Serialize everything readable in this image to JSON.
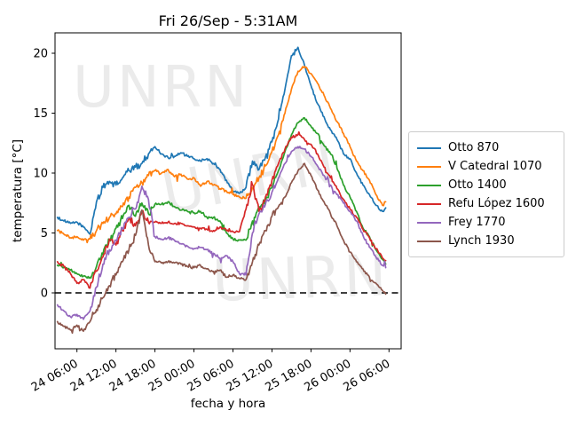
{
  "title": "Fri 26/Sep - 5:31AM",
  "axes": {
    "xlabel": "fecha y hora",
    "ylabel": "temperatura [°C]"
  },
  "watermark": {
    "text": "UNRN",
    "color": "#ebebeb"
  },
  "chart_data": {
    "type": "line",
    "title": "Fri 26/Sep - 5:31AM",
    "xlabel": "fecha y hora",
    "ylabel": "temperatura [°C]",
    "x_tick_labels": [
      "24 06:00",
      "24 12:00",
      "24 18:00",
      "25 00:00",
      "25 06:00",
      "25 12:00",
      "25 18:00",
      "26 00:00",
      "26 06:00"
    ],
    "x_tick_hours": [
      0,
      6,
      12,
      18,
      24,
      30,
      36,
      42,
      48
    ],
    "y_ticks": [
      0,
      5,
      10,
      15,
      20
    ],
    "ylim": [
      -4.7,
      21.7
    ],
    "xlim_hours": [
      -3.4,
      49.9
    ],
    "zero_line": true,
    "legend_position": "right",
    "x_hours": [
      -3,
      -2,
      -1,
      0,
      1,
      2,
      3,
      4,
      5,
      6,
      7,
      8,
      9,
      10,
      11,
      12,
      13,
      14,
      15,
      16,
      17,
      18,
      19,
      20,
      21,
      22,
      23,
      24,
      25,
      26,
      27,
      28,
      29,
      30,
      31,
      32,
      33,
      34,
      35,
      36,
      37,
      38,
      39,
      40,
      41,
      42,
      43,
      44,
      45,
      46,
      47,
      47.5
    ],
    "series": [
      {
        "name": "Otto 870",
        "color": "#1f77b4",
        "values": [
          6.3,
          6.0,
          5.8,
          5.9,
          5.5,
          4.9,
          7.6,
          8.8,
          9.3,
          9.0,
          9.6,
          10.2,
          10.5,
          10.8,
          11.6,
          12.2,
          11.6,
          11.3,
          11.4,
          11.7,
          11.4,
          11.2,
          11.0,
          11.2,
          10.8,
          10.3,
          9.4,
          8.5,
          8.3,
          8.8,
          11.0,
          10.3,
          11.3,
          12.6,
          14.5,
          17.0,
          19.8,
          20.5,
          19.0,
          17.3,
          15.8,
          14.7,
          13.6,
          12.8,
          11.6,
          11.2,
          10.0,
          9.0,
          8.2,
          7.3,
          6.8,
          7.1
        ]
      },
      {
        "name": "V Catedral 1070",
        "color": "#ff7f0e",
        "values": [
          5.2,
          4.9,
          4.6,
          4.7,
          4.4,
          4.5,
          5.2,
          5.8,
          6.3,
          6.6,
          7.2,
          8.0,
          8.8,
          9.2,
          9.8,
          10.2,
          10.0,
          10.3,
          9.7,
          9.9,
          9.5,
          9.6,
          8.9,
          9.3,
          9.0,
          8.7,
          8.5,
          8.2,
          8.0,
          7.9,
          8.8,
          9.6,
          10.6,
          11.8,
          13.2,
          15.0,
          17.0,
          18.5,
          18.9,
          18.3,
          17.5,
          16.5,
          15.4,
          14.3,
          13.3,
          12.2,
          11.0,
          10.2,
          9.4,
          8.2,
          7.3,
          7.6
        ]
      },
      {
        "name": "Otto 1400",
        "color": "#2ca02c",
        "values": [
          2.3,
          2.1,
          1.9,
          1.6,
          1.4,
          1.3,
          2.2,
          3.2,
          4.4,
          5.4,
          6.2,
          7.3,
          6.4,
          7.5,
          6.6,
          7.4,
          7.4,
          7.6,
          7.2,
          6.9,
          6.8,
          6.7,
          6.8,
          6.3,
          6.3,
          6.0,
          5.0,
          4.5,
          4.4,
          4.4,
          6.0,
          7.2,
          7.6,
          8.8,
          10.2,
          11.8,
          13.2,
          14.2,
          14.6,
          13.9,
          13.3,
          12.3,
          11.6,
          10.4,
          9.0,
          8.0,
          6.8,
          5.4,
          4.7,
          3.6,
          2.8,
          2.4
        ]
      },
      {
        "name": "Refu López 1600",
        "color": "#d62728",
        "values": [
          2.6,
          2.2,
          1.6,
          0.8,
          1.1,
          0.4,
          1.8,
          3.0,
          4.5,
          4.0,
          5.2,
          6.2,
          5.6,
          6.8,
          5.9,
          5.9,
          5.8,
          5.9,
          5.8,
          5.8,
          5.6,
          5.5,
          5.4,
          5.3,
          5.2,
          5.5,
          5.2,
          5.1,
          5.1,
          7.0,
          9.0,
          6.8,
          8.0,
          9.4,
          10.8,
          12.0,
          13.0,
          13.2,
          12.8,
          12.4,
          11.6,
          10.5,
          9.6,
          8.7,
          7.8,
          7.0,
          6.3,
          5.3,
          4.6,
          3.7,
          2.9,
          2.7
        ]
      },
      {
        "name": "Frey 1770",
        "color": "#9467bd",
        "values": [
          -1.0,
          -1.5,
          -2.0,
          -1.8,
          -2.2,
          -1.5,
          0.5,
          2.4,
          3.6,
          4.4,
          5.4,
          6.3,
          7.0,
          8.9,
          7.8,
          4.7,
          4.5,
          4.6,
          4.4,
          4.1,
          3.9,
          3.7,
          3.8,
          3.6,
          3.3,
          2.9,
          3.1,
          2.6,
          1.6,
          1.5,
          5.0,
          6.6,
          7.4,
          8.4,
          9.6,
          10.8,
          11.8,
          12.2,
          12.0,
          11.4,
          10.6,
          9.8,
          9.0,
          8.2,
          7.5,
          6.8,
          6.0,
          4.8,
          3.8,
          3.0,
          2.3,
          2.1
        ]
      },
      {
        "name": "Lynch 1930",
        "color": "#8c564b",
        "values": [
          -2.4,
          -2.8,
          -3.1,
          -2.7,
          -3.2,
          -2.4,
          -1.4,
          -0.4,
          0.6,
          1.5,
          2.6,
          3.6,
          4.8,
          6.9,
          4.0,
          2.6,
          2.5,
          2.6,
          2.5,
          2.4,
          2.2,
          2.1,
          2.3,
          2.0,
          1.8,
          1.9,
          1.3,
          1.5,
          1.2,
          1.1,
          2.6,
          4.0,
          5.2,
          6.4,
          7.2,
          8.0,
          9.2,
          10.2,
          10.8,
          9.8,
          8.6,
          7.6,
          6.6,
          5.6,
          4.4,
          3.4,
          2.6,
          2.0,
          1.3,
          0.8,
          0.2,
          -0.1
        ]
      }
    ]
  }
}
